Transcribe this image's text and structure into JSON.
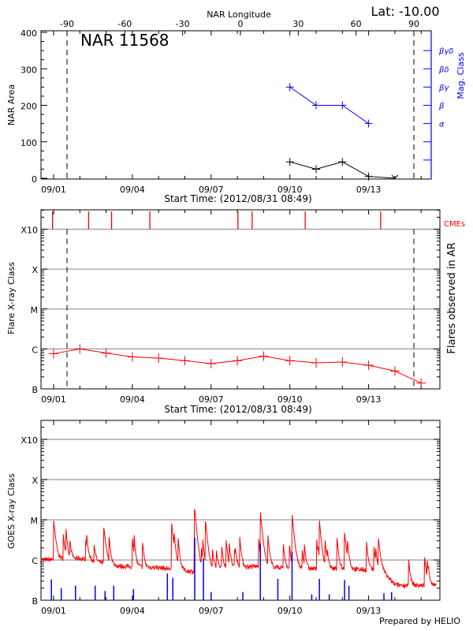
{
  "header": {
    "latitude_label": "Lat: -10.00",
    "region_label": "NAR 11568",
    "footer": "Prepared by HELIO"
  },
  "colors": {
    "area": "#000000",
    "mag_class": "#0000ff",
    "flare": "#ff0000",
    "cme": "#ff0000",
    "goes_long": "#ff0000",
    "goes_short": "#0000ff",
    "grid": "#999999"
  },
  "chart_data": [
    {
      "type": "line",
      "title": "",
      "top_xlabel": "NAR Longitude",
      "top_xticks": [
        "-90",
        "-60",
        "-30",
        "0",
        "30",
        "60",
        "90"
      ],
      "top_xlim": [
        -90,
        90
      ],
      "xlabel": "Start Time: (2012/08/31 08:49)",
      "xticks": [
        "09/01",
        "09/04",
        "09/07",
        "09/10",
        "09/13"
      ],
      "xlim": [
        "2012-08-31 12:00",
        "2012-09-15 10:00"
      ],
      "ylabel": "NAR Area",
      "ylim": [
        0,
        400
      ],
      "yticks": [
        "0",
        "100",
        "200",
        "300",
        "400"
      ],
      "y2label": "Mag. Class",
      "y2ticks": [
        "",
        "",
        "α",
        "β",
        "βγ",
        "βδ",
        "βγδ"
      ],
      "limb_lines": [
        -90,
        90
      ],
      "series": [
        {
          "name": "",
          "x": [
            "2012-09-10 00:00",
            "2012-09-11 00:00",
            "2012-09-12 00:00",
            "2012-09-13 00:00",
            "2012-09-14 00:00"
          ],
          "values": [
            45,
            25,
            45,
            5,
            0
          ]
        },
        {
          "name": "",
          "x": [
            "2012-09-10 00:00",
            "2012-09-11 00:00",
            "2012-09-12 00:00",
            "2012-09-13 00:00"
          ],
          "values": [
            "βγ",
            "β",
            "β",
            "α"
          ]
        }
      ]
    },
    {
      "type": "line",
      "title": "",
      "xlabel": "Start Time: (2012/08/31 08:49)",
      "xticks": [
        "09/01",
        "09/04",
        "09/07",
        "09/10",
        "09/13"
      ],
      "xlim": [
        "2012-08-31 12:00",
        "2012-09-15 14:00"
      ],
      "ylabel": "Flare X-ray Class",
      "y2label": "Flares observed in AR",
      "yticks": [
        "B",
        "C",
        "M",
        "X",
        "X10"
      ],
      "grid": true,
      "cme_label": "CMEs",
      "cmes": [
        "2012-08-31 23:00",
        "2012-09-02 08:00",
        "2012-09-03 05:00",
        "2012-09-04 16:00",
        "2012-09-08 00:30",
        "2012-09-08 13:30",
        "2012-09-10 14:00",
        "2012-09-13 11:00"
      ],
      "flares": {
        "x": [
          "2012-09-01 00:00",
          "2012-09-02 00:00",
          "2012-09-03 00:00",
          "2012-09-04 00:00",
          "2012-09-05 00:00",
          "2012-09-06 00:00",
          "2012-09-07 00:00",
          "2012-09-08 00:00",
          "2012-09-09 00:00",
          "2012-09-10 00:00",
          "2012-09-11 00:00",
          "2012-09-12 00:00",
          "2012-09-13 00:00",
          "2012-09-14 00:00",
          "2012-09-15 00:00"
        ],
        "values": [
          "B7.6",
          "C1.0",
          "B7.9",
          "B6.3",
          "B5.9",
          "B5.1",
          "B4.3",
          "B5.1",
          "B6.6",
          "B5.1",
          "B4.5",
          "B4.7",
          "B3.9",
          "B2.8",
          "B1.4"
        ]
      }
    },
    {
      "type": "line",
      "title": "",
      "xticks": [
        "09/01",
        "09/04",
        "09/07",
        "09/10",
        "09/13"
      ],
      "xlim": [
        "2012-08-31 12:00",
        "2012-09-15 14:00"
      ],
      "ylabel": "GOES X-ray Class",
      "yticks": [
        "B",
        "C",
        "M",
        "X",
        "X10"
      ],
      "grid": true,
      "long_channel_peaks": {
        "x": [
          "2012-09-01 00:00",
          "2012-09-02 22:00",
          "2012-09-05 12:00",
          "2012-09-06 09:00",
          "2012-09-06 19:00",
          "2012-09-08 21:00",
          "2012-09-10 02:00",
          "2012-09-11 03:00",
          "2012-09-12 02:00",
          "2012-09-13 09:00"
        ],
        "values": [
          "C8.9",
          "C5.5",
          "C7.4",
          "M1.8",
          "C8.3",
          "M1.5",
          "M1.3",
          "C6.2",
          "C4.2",
          "C2.7"
        ]
      },
      "long_channel_background": {
        "x": [
          "2012-08-31 12:00",
          "2012-09-02 00:00",
          "2012-09-03 12:00",
          "2012-09-05 00:00",
          "2012-09-06 12:00",
          "2012-09-07 12:00",
          "2012-09-09 00:00",
          "2012-09-10 12:00",
          "2012-09-12 00:00",
          "2012-09-13 12:00",
          "2012-09-14 00:00",
          "2012-09-15 14:00"
        ],
        "values": [
          "C1.0",
          "C1.1",
          "B7.0",
          "B6.5",
          "B5.0",
          "B6.5",
          "B7.0",
          "B6.0",
          "B6.0",
          "B5.5",
          "B2.4",
          "B2.3"
        ]
      },
      "short_channel_peaks": {
        "x": [
          "2012-08-31 22:00",
          "2012-09-01 07:00",
          "2012-09-01 20:00",
          "2012-09-02 14:00",
          "2012-09-02 23:00",
          "2012-09-03 07:00",
          "2012-09-04 01:00",
          "2012-09-05 08:00",
          "2012-09-05 13:00",
          "2012-09-06 09:00",
          "2012-09-06 17:00",
          "2012-09-07 00:00",
          "2012-09-08 05:00",
          "2012-09-08 21:00",
          "2012-09-09 13:00",
          "2012-09-10 02:00",
          "2012-09-10 20:00",
          "2012-09-11 03:00",
          "2012-09-11 12:00",
          "2012-09-12 02:00",
          "2012-09-12 06:00",
          "2012-09-13 14:00",
          "2012-09-13 21:00"
        ],
        "values": [
          "B3.3",
          "B2.0",
          "B2.3",
          "B2.3",
          "B1.7",
          "B2.3",
          "B1.9",
          "B4.6",
          "B3.6",
          "C3.6",
          "C1.1",
          "B1.6",
          "B1.6",
          "C2.6",
          "B3.4",
          "C1.6",
          "B1.4",
          "B3.4",
          "B1.4",
          "B3.2",
          "B2.3",
          "B1.5",
          "B1.6"
        ]
      }
    }
  ]
}
